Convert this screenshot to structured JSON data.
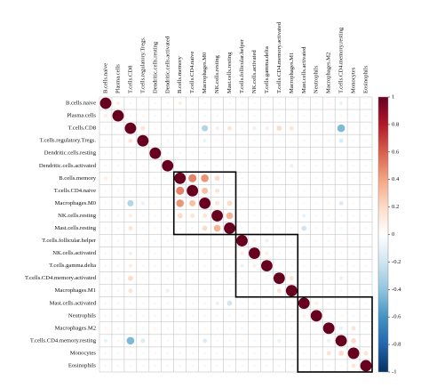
{
  "chart_data": {
    "type": "corrplot",
    "categories": [
      "B.cells.naive",
      "Plasma.cells",
      "T.cells.CD8",
      "T.cells.regulatory.Tregs.",
      "Dendritic.cells.resting",
      "Dendritic.cells.activated",
      "B.cells.memory",
      "T.cells.CD4.naive",
      "Macrophages.M0",
      "NK.cells.resting",
      "Mast.cells.resting",
      "T.cells.follicular.helper",
      "NK.cells.activated",
      "T.cells.gamma.delta",
      "T.cells.CD4.memory.activated",
      "Macrophages.M1",
      "Mast.cells.activated",
      "Neutrophils",
      "Macrophages.M2",
      "T.cells.CD4.memory.resting",
      "Monocytes",
      "Eosinophils"
    ],
    "matrix": [
      [
        1,
        0.1,
        0.05,
        -0.05,
        0.05,
        -0.05,
        0.1,
        -0.05,
        0.05,
        -0.05,
        0.05,
        -0.05,
        0.05,
        -0.05,
        0.05,
        -0.05,
        0.05,
        -0.05,
        0.05,
        -0.1,
        0.05,
        -0.05
      ],
      [
        0.1,
        1,
        -0.05,
        0.05,
        -0.05,
        0.05,
        -0.05,
        0.05,
        -0.05,
        0.05,
        -0.05,
        0.05,
        -0.05,
        0.05,
        -0.05,
        0.05,
        -0.05,
        0.05,
        -0.05,
        0.05,
        -0.05,
        0.05
      ],
      [
        0.05,
        -0.05,
        1,
        0.15,
        0.05,
        -0.05,
        0.05,
        -0.05,
        -0.3,
        0.1,
        0.15,
        -0.05,
        -0.1,
        0.1,
        0.2,
        0.15,
        0.05,
        -0.05,
        0.05,
        -0.45,
        0.05,
        -0.05
      ],
      [
        -0.05,
        0.05,
        0.15,
        1,
        -0.05,
        0.05,
        -0.05,
        0.05,
        -0.1,
        0.05,
        -0.05,
        0.05,
        -0.05,
        0.05,
        -0.05,
        0.05,
        -0.05,
        0.05,
        -0.05,
        -0.15,
        -0.05,
        0.05
      ],
      [
        0.05,
        -0.05,
        0.05,
        -0.05,
        1,
        -0.05,
        0.05,
        -0.05,
        0.05,
        -0.05,
        0.05,
        -0.05,
        0.05,
        -0.05,
        0.05,
        -0.05,
        0.05,
        -0.05,
        0.05,
        -0.05,
        0.05,
        -0.05
      ],
      [
        -0.05,
        0.05,
        -0.05,
        0.05,
        -0.05,
        1,
        -0.05,
        0.05,
        -0.05,
        0.05,
        -0.05,
        0.05,
        -0.05,
        0.05,
        -0.05,
        -0.1,
        -0.05,
        0.05,
        -0.05,
        0.05,
        -0.05,
        0.05
      ],
      [
        0.1,
        -0.05,
        0.05,
        -0.05,
        0.05,
        -0.05,
        1,
        0.5,
        0.45,
        0.2,
        0.05,
        -0.05,
        0.05,
        -0.05,
        0.05,
        -0.05,
        0.05,
        -0.05,
        0.05,
        -0.05,
        0.05,
        -0.05
      ],
      [
        -0.05,
        0.05,
        -0.05,
        0.05,
        -0.05,
        0.05,
        0.5,
        1,
        0.3,
        0.15,
        -0.05,
        0.05,
        -0.05,
        0.05,
        -0.05,
        0.05,
        -0.05,
        0.05,
        -0.05,
        0.05,
        -0.05,
        0.05
      ],
      [
        0.05,
        -0.05,
        -0.3,
        -0.1,
        0.05,
        -0.05,
        0.45,
        0.3,
        1,
        0.15,
        0.2,
        -0.05,
        0.05,
        -0.05,
        0.05,
        -0.05,
        0.05,
        -0.05,
        0.05,
        -0.15,
        0.05,
        -0.05
      ],
      [
        -0.05,
        0.05,
        0.1,
        0.05,
        -0.05,
        0.05,
        0.2,
        0.15,
        0.15,
        1,
        0.35,
        0.05,
        -0.05,
        0.05,
        -0.05,
        0.05,
        -0.1,
        0.05,
        -0.05,
        0.05,
        -0.05,
        0.05
      ],
      [
        0.05,
        -0.05,
        0.15,
        -0.05,
        0.05,
        -0.05,
        0.05,
        -0.05,
        0.2,
        0.35,
        1,
        -0.05,
        0.05,
        -0.05,
        0.05,
        -0.05,
        -0.2,
        -0.05,
        0.05,
        -0.05,
        0.05,
        -0.05
      ],
      [
        -0.05,
        0.05,
        -0.05,
        0.05,
        -0.05,
        0.05,
        -0.05,
        0.05,
        -0.05,
        0.05,
        -0.05,
        1,
        0.1,
        -0.1,
        -0.05,
        0.05,
        -0.05,
        0.05,
        -0.05,
        0.05,
        -0.05,
        0.05
      ],
      [
        0.05,
        -0.05,
        -0.1,
        -0.05,
        0.05,
        -0.05,
        0.05,
        -0.05,
        0.05,
        -0.05,
        0.05,
        0.1,
        1,
        0.1,
        0.05,
        -0.05,
        0.05,
        -0.05,
        0.05,
        -0.05,
        0.05,
        -0.05
      ],
      [
        -0.05,
        0.05,
        0.1,
        0.05,
        -0.05,
        0.05,
        -0.05,
        0.05,
        -0.05,
        0.05,
        -0.05,
        -0.1,
        0.1,
        1,
        -0.05,
        0.05,
        -0.05,
        0.05,
        -0.05,
        0.05,
        -0.05,
        0.05
      ],
      [
        0.05,
        -0.05,
        0.2,
        -0.05,
        0.05,
        -0.05,
        0.05,
        -0.05,
        0.05,
        -0.05,
        0.05,
        -0.05,
        0.05,
        -0.05,
        1,
        0.15,
        0.05,
        -0.05,
        0.05,
        -0.1,
        0.05,
        -0.05
      ],
      [
        -0.05,
        0.05,
        0.15,
        0.05,
        -0.05,
        -0.1,
        -0.05,
        0.05,
        -0.05,
        0.05,
        -0.05,
        0.05,
        -0.05,
        0.05,
        0.15,
        1,
        -0.05,
        0.05,
        -0.05,
        0.05,
        -0.05,
        0.05
      ],
      [
        0.05,
        -0.05,
        0.05,
        -0.05,
        0.05,
        -0.05,
        0.05,
        -0.05,
        0.05,
        -0.1,
        -0.2,
        -0.05,
        0.05,
        -0.05,
        0.05,
        -0.05,
        1,
        0.1,
        0.05,
        -0.05,
        0.05,
        -0.05
      ],
      [
        -0.05,
        0.05,
        -0.05,
        0.05,
        -0.05,
        0.05,
        -0.05,
        0.05,
        -0.05,
        0.05,
        -0.05,
        0.05,
        -0.05,
        0.05,
        -0.05,
        0.05,
        0.1,
        1,
        -0.05,
        0.05,
        -0.05,
        0.05
      ],
      [
        0.05,
        -0.05,
        0.05,
        -0.05,
        0.05,
        -0.05,
        0.05,
        -0.05,
        0.05,
        -0.05,
        0.05,
        -0.05,
        0.05,
        -0.05,
        0.05,
        -0.05,
        0.05,
        -0.05,
        1,
        -0.1,
        0.15,
        -0.05
      ],
      [
        -0.1,
        0.05,
        -0.45,
        -0.15,
        -0.05,
        0.05,
        -0.05,
        0.05,
        -0.15,
        0.05,
        -0.05,
        0.05,
        -0.05,
        0.05,
        -0.1,
        0.05,
        -0.05,
        0.05,
        -0.1,
        1,
        0.2,
        0.05
      ],
      [
        0.05,
        -0.05,
        0.05,
        -0.05,
        0.05,
        -0.05,
        0.05,
        -0.05,
        0.05,
        -0.05,
        0.05,
        -0.05,
        0.05,
        -0.05,
        0.05,
        -0.05,
        0.05,
        -0.05,
        0.15,
        0.2,
        1,
        0.15
      ],
      [
        -0.05,
        0.05,
        -0.05,
        0.05,
        -0.05,
        0.05,
        -0.05,
        0.05,
        -0.05,
        0.05,
        -0.05,
        0.05,
        -0.05,
        0.05,
        -0.05,
        0.05,
        -0.05,
        0.05,
        -0.05,
        0.05,
        0.15,
        1
      ]
    ],
    "clim": [
      -1,
      1
    ],
    "colorbar_ticks": [
      1,
      0.8,
      0.6,
      0.4,
      0.2,
      0,
      -0.2,
      -0.4,
      -0.6,
      -0.8,
      -1
    ],
    "colors": [
      "#053061",
      "#2166AC",
      "#4393C3",
      "#92C5DE",
      "#D1E5F0",
      "#FFFFFF",
      "#FDDBC7",
      "#F4A582",
      "#D6604D",
      "#B2182B",
      "#67001F"
    ],
    "cluster_boxes": [
      [
        6,
        10
      ],
      [
        11,
        15
      ],
      [
        16,
        21
      ]
    ]
  }
}
